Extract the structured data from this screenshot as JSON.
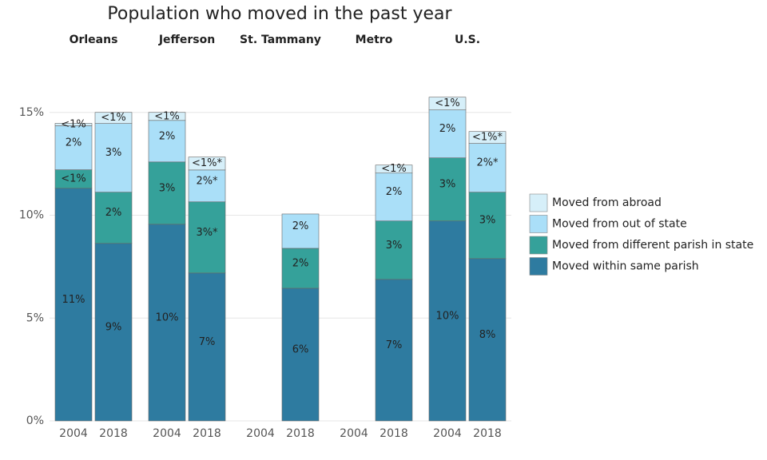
{
  "chart_data": {
    "type": "stacked-bar",
    "title": "Population who moved in the past year",
    "groups": [
      "Orleans",
      "Jefferson",
      "St. Tammany",
      "Metro",
      "U.S."
    ],
    "categories": [
      "2004",
      "2018",
      "2004",
      "2018",
      "2004",
      "2018",
      "2004",
      "2018",
      "2004",
      "2018"
    ],
    "series": [
      {
        "name": "Moved within same parish",
        "color": "#2e7ba0",
        "values": [
          11.31,
          8.63,
          9.56,
          7.19,
          null,
          6.45,
          null,
          6.88,
          9.72,
          7.89
        ],
        "value_labels": [
          "11%",
          "9%",
          "10%",
          "7%",
          null,
          "6%",
          null,
          "7%",
          "10%",
          "8%"
        ]
      },
      {
        "name": "Moved from different parish in state",
        "color": "#35a19a",
        "values": [
          0.9,
          2.49,
          3.03,
          3.46,
          null,
          1.94,
          null,
          2.84,
          3.07,
          3.23
        ],
        "value_labels": [
          "<1%",
          "2%",
          "3%",
          "3%*",
          null,
          "2%",
          null,
          "3%",
          "3%",
          "3%"
        ]
      },
      {
        "name": "Moved from out of state",
        "color": "#aadff8",
        "values": [
          2.14,
          3.34,
          2.02,
          1.55,
          null,
          1.67,
          null,
          2.33,
          2.33,
          2.37
        ],
        "value_labels": [
          "2%",
          "3%",
          "2%",
          "2%*",
          null,
          "2%",
          null,
          "2%",
          "2%",
          "2%*"
        ]
      },
      {
        "name": "Moved from abroad",
        "color": "#d6eff9",
        "values": [
          0.12,
          0.54,
          0.39,
          0.63,
          null,
          null,
          null,
          0.39,
          0.62,
          0.58
        ],
        "value_labels": [
          "<1%",
          "<1%",
          "<1%",
          "<1%*",
          null,
          null,
          null,
          "<1%",
          "<1%",
          "<1%*"
        ]
      }
    ],
    "ylim": [
      0,
      16
    ],
    "yticks": [
      {
        "value": 0,
        "label": "0%"
      },
      {
        "value": 5,
        "label": "5%"
      },
      {
        "value": 10,
        "label": "10%"
      },
      {
        "value": 15,
        "label": "15%"
      }
    ],
    "grid": true,
    "legend": "right"
  }
}
